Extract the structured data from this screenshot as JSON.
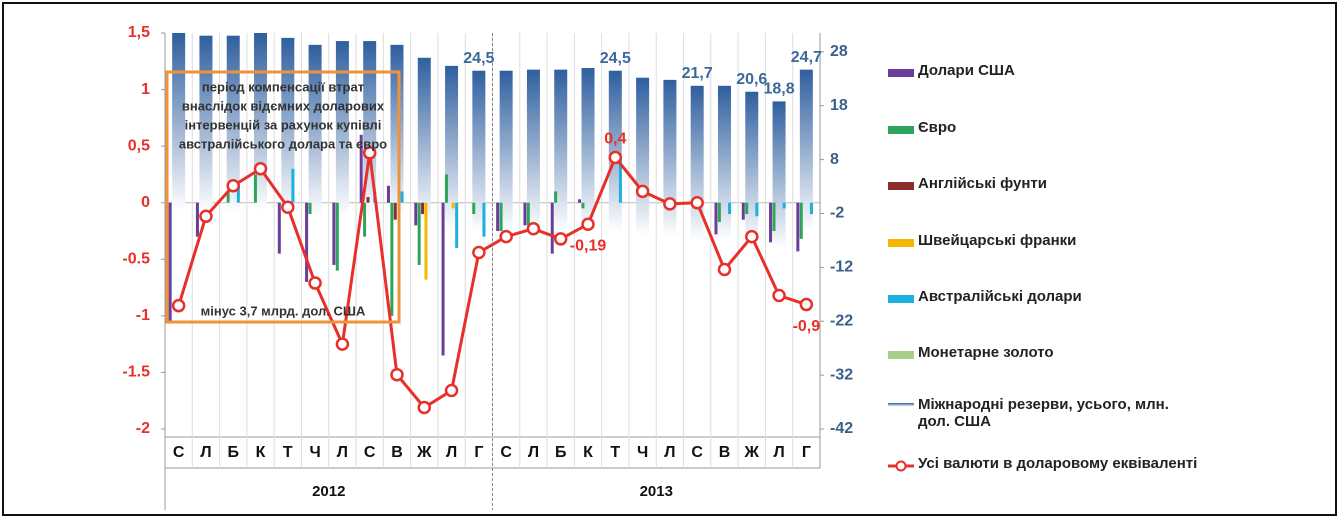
{
  "chart_data": {
    "type": "bar",
    "categories": [
      "С",
      "Л",
      "Б",
      "К",
      "Т",
      "Ч",
      "Л",
      "С",
      "В",
      "Ж",
      "Л",
      "Г",
      "С",
      "Л",
      "Б",
      "К",
      "Т",
      "Ч",
      "Л",
      "С",
      "В",
      "Ж",
      "Л",
      "Г"
    ],
    "groups": [
      "2012",
      "2013"
    ],
    "ylim": [
      -2,
      1.5
    ],
    "yticks": [
      {
        "value": 1.5,
        "label": "1,5"
      },
      1,
      {
        "value": 0.5,
        "label": "0,5"
      },
      0,
      -0.5,
      -1,
      -1.5,
      -2
    ],
    "y2lim": [
      -42,
      31.5
    ],
    "y2ticks": [
      28,
      18,
      8,
      -2,
      -12,
      -22,
      -32,
      -42
    ],
    "annotations": [
      "період компенсації втрат",
      "внаслідок відємних доларових",
      "інтервенцій за рахунок купівлі",
      "австралійського долара та євро",
      "мінус 3,7 млрд. дол. США"
    ],
    "series": [
      {
        "name": "Міжнародні резерви, усього, млн. дол. США",
        "type": "bar",
        "axis": "y2",
        "color": "#2f5f9f",
        "values": [
          31.5,
          31,
          31,
          31.5,
          30.6,
          29.3,
          30,
          30,
          29.3,
          26.9,
          25.4,
          24.5,
          24.5,
          24.7,
          24.7,
          25,
          24.5,
          23.2,
          22.8,
          21.7,
          21.7,
          20.6,
          18.8,
          24.7
        ],
        "value_labels": [
          null,
          null,
          null,
          null,
          null,
          null,
          null,
          null,
          null,
          null,
          null,
          "24,5",
          null,
          null,
          null,
          null,
          "24,5",
          null,
          null,
          "21,7",
          null,
          "20,6",
          "18,8",
          "24,7"
        ]
      },
      {
        "name": "Долари США",
        "type": "bar",
        "color": "#6a3d9a",
        "values": [
          -1.05,
          -0.3,
          0,
          0,
          -0.45,
          -0.7,
          -0.55,
          0.6,
          0.15,
          -0.2,
          -1.35,
          0,
          -0.25,
          -0.2,
          -0.45,
          0.03,
          0,
          0,
          0,
          0,
          -0.28,
          -0.15,
          -0.35,
          -0.43
        ]
      },
      {
        "name": "Євро",
        "type": "bar",
        "color": "#2ca55a",
        "values": [
          0,
          0,
          0.1,
          0.25,
          0,
          -0.1,
          -0.6,
          -0.3,
          -1,
          -0.55,
          0.25,
          -0.1,
          -0.25,
          -0.2,
          0.1,
          -0.05,
          0,
          0,
          0,
          0,
          -0.17,
          -0.1,
          -0.25,
          -0.32
        ]
      },
      {
        "name": "Англійські фунти",
        "type": "bar",
        "color": "#8b2e2e",
        "values": [
          0,
          0,
          0,
          0,
          0,
          0,
          0,
          0.05,
          -0.15,
          -0.1,
          0,
          0,
          0,
          0,
          0,
          0,
          0,
          0,
          0,
          0,
          0,
          0,
          0,
          0
        ]
      },
      {
        "name": "Швейцарські франки",
        "type": "bar",
        "color": "#f5b800",
        "values": [
          0,
          0,
          0,
          0,
          0,
          0,
          0,
          0,
          0,
          -0.68,
          -0.05,
          0,
          0,
          0,
          0,
          0,
          0,
          0,
          0,
          0,
          0,
          0,
          0,
          0
        ]
      },
      {
        "name": "Австралійські долари",
        "type": "bar",
        "color": "#1cb0e0",
        "values": [
          0,
          0,
          0.15,
          0,
          0.3,
          0,
          0,
          0.1,
          0.1,
          0,
          -0.4,
          -0.3,
          0,
          0,
          0,
          0,
          0.4,
          0,
          0,
          0,
          -0.1,
          -0.12,
          -0.05,
          -0.1
        ]
      },
      {
        "name": "Монетарне золото",
        "type": "bar",
        "color": "#a8d08d",
        "values": [
          0,
          0,
          0,
          0,
          0,
          0,
          0,
          0,
          0,
          0,
          0,
          0,
          0,
          0,
          0,
          0,
          0,
          0,
          0,
          0,
          0,
          0,
          0,
          0
        ]
      },
      {
        "name": "Усі валюти в доларовому еквіваленті",
        "type": "line",
        "color": "#e8302a",
        "values": [
          -0.91,
          -0.12,
          0.15,
          0.3,
          -0.04,
          -0.71,
          -1.25,
          0.44,
          -1.52,
          -1.81,
          -1.66,
          -0.44,
          -0.3,
          -0.23,
          -0.32,
          -0.19,
          0.4,
          0.1,
          -0.01,
          0,
          -0.59,
          -0.3,
          -0.82,
          -0.9
        ],
        "value_labels": [
          null,
          null,
          null,
          null,
          null,
          null,
          null,
          null,
          null,
          null,
          null,
          null,
          null,
          null,
          null,
          "-0,19",
          "0,4",
          null,
          null,
          null,
          null,
          null,
          null,
          "-0,9"
        ]
      }
    ]
  }
}
